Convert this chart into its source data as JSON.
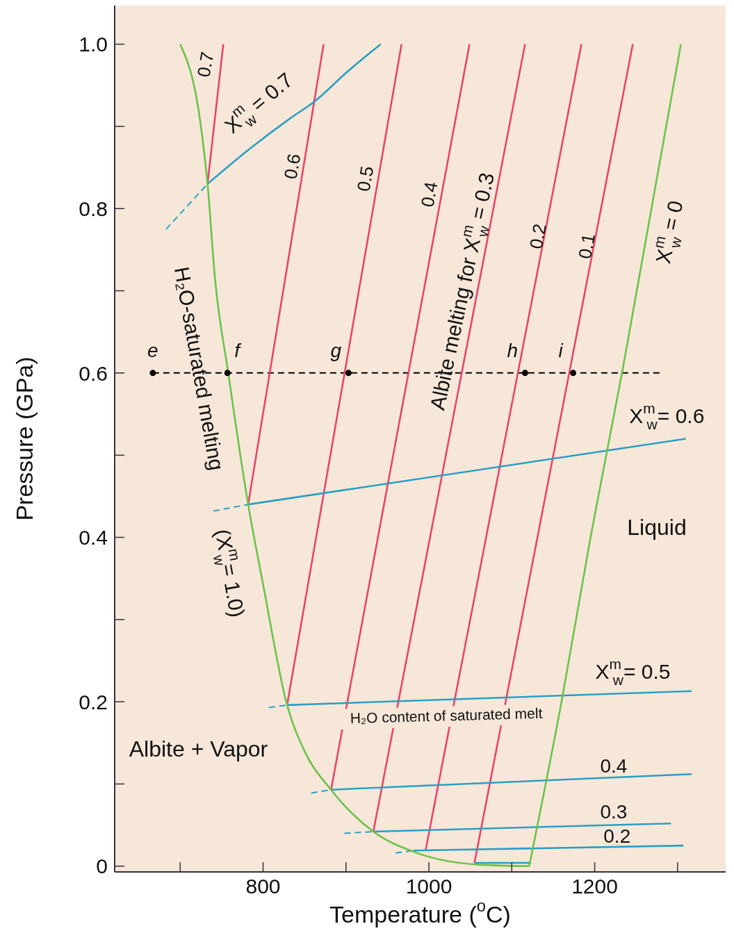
{
  "chart_data": {
    "type": "line",
    "xlabel": "Temperature ($^{o}$C)",
    "ylabel": "Pressure (GPa)",
    "xlim": [
      621,
      1358
    ],
    "ylim": [
      -0.007,
      1.047
    ],
    "xticks": [
      {
        "value": 700,
        "label": null
      },
      800,
      {
        "value": 900,
        "label": null
      },
      1000,
      {
        "value": 1100,
        "label": null
      },
      1200,
      {
        "value": 1300,
        "label": null
      }
    ],
    "yticks": [
      0,
      {
        "value": 0.1,
        "label": null
      },
      0.2,
      {
        "value": 0.3,
        "label": null
      },
      0.4,
      {
        "value": 0.5,
        "label": null
      },
      0.6,
      {
        "value": 0.7,
        "label": null
      },
      0.8,
      {
        "value": 0.9,
        "label": null
      },
      {
        "value": 1.0,
        "label": "1.0"
      }
    ],
    "grid": false,
    "series": [
      {
        "color": "#2a9fc4",
        "x": [
          683,
          733
        ],
        "values": [
          0.775,
          0.83
        ],
        "line_style": "dashed"
      },
      {
        "color": "#2a9fc4",
        "x": [
          740,
          782
        ],
        "values": [
          0.432,
          0.44
        ],
        "line_style": "dashed"
      },
      {
        "color": "#2a9fc4",
        "x": [
          807,
          829
        ],
        "values": [
          0.193,
          0.196
        ],
        "line_style": "dashed"
      },
      {
        "color": "#2a9fc4",
        "x": [
          858,
          882
        ],
        "values": [
          0.089,
          0.093
        ],
        "line_style": "dashed"
      },
      {
        "color": "#2a9fc4",
        "x": [
          898,
          933
        ],
        "values": [
          0.04,
          0.042
        ],
        "line_style": "dashed"
      },
      {
        "color": "#2a9fc4",
        "x": [
          960,
          981
        ],
        "values": [
          0.016,
          0.019
        ],
        "line_style": "dashed"
      },
      {
        "color": "#000000",
        "x": [
          667,
          1283
        ],
        "values": [
          0.6,
          0.6
        ],
        "line_style": "dashed"
      },
      {
        "color": "#e8456a",
        "x": [
          733,
          752
        ],
        "values": [
          0.83,
          1.0
        ]
      },
      {
        "color": "#e8456a",
        "x": [
          782,
          873
        ],
        "values": [
          0.44,
          1.0
        ]
      },
      {
        "color": "#e8456a",
        "x": [
          829,
          967
        ],
        "values": [
          0.196,
          1.0
        ]
      },
      {
        "color": "#e8456a",
        "x": [
          882,
          1049
        ],
        "values": [
          0.093,
          1.0
        ]
      },
      {
        "color": "#e8456a",
        "x": [
          933,
          1116
        ],
        "values": [
          0.042,
          1.0
        ]
      },
      {
        "color": "#e8456a",
        "x": [
          996,
          1184
        ],
        "values": [
          0.019,
          1.0
        ]
      },
      {
        "color": "#e8456a",
        "x": [
          1055,
          1246
        ],
        "values": [
          0.004,
          1.0
        ]
      },
      {
        "color": "#2a9fc4",
        "x": [
          733,
          783,
          833,
          863,
          900,
          942
        ],
        "values": [
          0.83,
          0.872,
          0.91,
          0.931,
          0.965,
          1.0
        ]
      },
      {
        "color": "#2a9fc4",
        "x": [
          782,
          1310
        ],
        "values": [
          0.44,
          0.52
        ]
      },
      {
        "color": "#2a9fc4",
        "x": [
          829,
          1317
        ],
        "values": [
          0.196,
          0.213
        ]
      },
      {
        "color": "#2a9fc4",
        "x": [
          882,
          1317
        ],
        "values": [
          0.093,
          0.112
        ]
      },
      {
        "color": "#2a9fc4",
        "x": [
          933,
          1292
        ],
        "values": [
          0.042,
          0.052
        ]
      },
      {
        "color": "#2a9fc4",
        "x": [
          981,
          1307
        ],
        "values": [
          0.019,
          0.025
        ]
      },
      {
        "color": "#2a9fc4",
        "x": [
          1055,
          1123
        ],
        "values": [
          0.004,
          0.004
        ]
      },
      {
        "color": "#6cc24a",
        "x": [
          700,
          725,
          733,
          742,
          758,
          782,
          800,
          829,
          850,
          882,
          933,
          983,
          1058,
          1121
        ],
        "values": [
          1.0,
          0.9,
          0.83,
          0.715,
          0.6,
          0.44,
          0.343,
          0.196,
          0.14,
          0.093,
          0.042,
          0.017,
          0.002,
          0.0
        ]
      },
      {
        "color": "#6cc24a",
        "x": [
          1121,
          1160,
          1195,
          1233,
          1304
        ],
        "values": [
          0.0,
          0.2,
          0.4,
          0.6,
          1.0
        ]
      },
      {
        "type": "scatter",
        "color": "#000000",
        "x": [
          667,
          757,
          903,
          1116,
          1174
        ],
        "values": [
          0.6,
          0.6,
          0.6,
          0.6,
          0.6
        ]
      }
    ],
    "annotations": [
      "0.7",
      "0.6",
      "0.5",
      "0.4",
      "Albite melting for X$^{m}$$_{w}$ = 0.3",
      "0.2",
      "0.1",
      "X$^{m}$$_{w}$ = 0",
      "X$^{m}$$_{w}$ = 0.7",
      "X$^{m}$$_{w}$= 0.6",
      "X$^{m}$$_{w}$= 0.5",
      "0.4",
      "0.3",
      "0.2",
      "H₂O-saturated melting",
      "(X$^{m}$$_{w}$= 1.0)",
      "H₂O content of saturated melt",
      "Liquid",
      "Albite + Vapor",
      {
        "text": "e",
        "x": 667,
        "y": 0.6
      },
      {
        "text": "f",
        "x": 757,
        "y": 0.6
      },
      {
        "text": "g",
        "x": 903,
        "y": 0.6
      },
      {
        "text": "h",
        "x": 1116,
        "y": 0.6
      },
      {
        "text": "i",
        "x": 1174,
        "y": 0.6
      }
    ]
  }
}
